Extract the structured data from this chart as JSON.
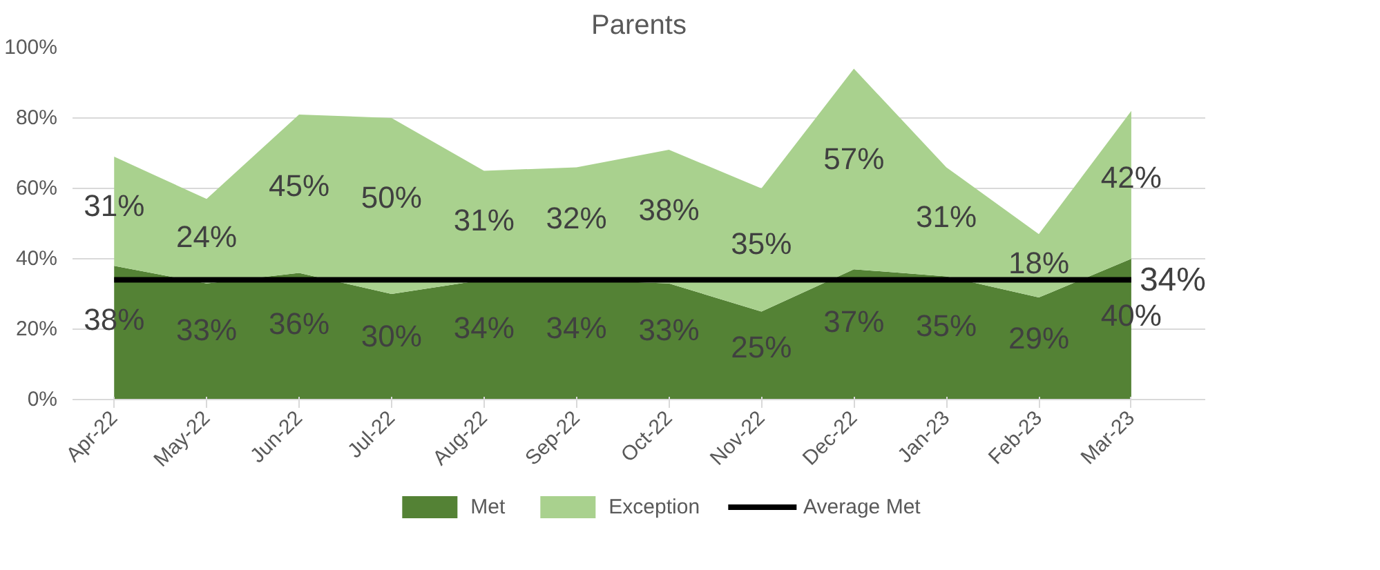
{
  "chart_data": {
    "type": "area",
    "title": "Parents",
    "stacked": true,
    "categories": [
      "Apr-22",
      "May-22",
      "Jun-22",
      "Jul-22",
      "Aug-22",
      "Sep-22",
      "Oct-22",
      "Nov-22",
      "Dec-22",
      "Jan-23",
      "Feb-23",
      "Mar-23"
    ],
    "series": [
      {
        "name": "Met",
        "color": "#548235",
        "values": [
          38,
          33,
          36,
          30,
          34,
          34,
          33,
          25,
          37,
          35,
          29,
          40
        ],
        "value_labels": [
          "38%",
          "33%",
          "36%",
          "30%",
          "34%",
          "34%",
          "33%",
          "25%",
          "37%",
          "35%",
          "29%",
          "40%"
        ]
      },
      {
        "name": "Exception",
        "color": "#a9d18e",
        "values": [
          31,
          24,
          45,
          50,
          31,
          32,
          38,
          35,
          57,
          31,
          18,
          42
        ],
        "value_labels": [
          "31%",
          "24%",
          "45%",
          "50%",
          "31%",
          "32%",
          "38%",
          "35%",
          "57%",
          "31%",
          "18%",
          "42%"
        ]
      },
      {
        "name": "Average Met",
        "type": "line",
        "color": "#000000",
        "values": [
          34,
          34,
          34,
          34,
          34,
          34,
          34,
          34,
          34,
          34,
          34,
          34
        ],
        "value_labels": [
          null,
          null,
          null,
          null,
          null,
          null,
          null,
          null,
          null,
          null,
          null,
          "34%"
        ]
      }
    ],
    "ylim": [
      0,
      100
    ],
    "yticks": [
      {
        "value": 0,
        "label": "0%"
      },
      {
        "value": 20,
        "label": "20%"
      },
      {
        "value": 40,
        "label": "40%"
      },
      {
        "value": 60,
        "label": "60%"
      },
      {
        "value": 80,
        "label": "80%"
      },
      {
        "value": 100,
        "label": "100%"
      }
    ],
    "grid": "y",
    "legend": "bottom"
  }
}
